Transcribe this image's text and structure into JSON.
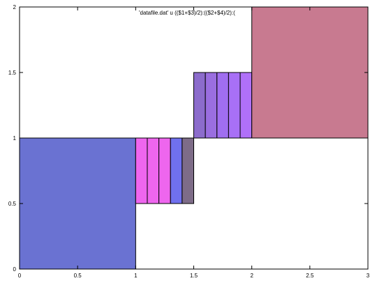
{
  "chart_data": {
    "type": "boxes",
    "key_label": "'datafile.dat' u (($1+$3)/2):(($2+$4)/2):(",
    "xlim": [
      0,
      3
    ],
    "ylim": [
      0,
      2
    ],
    "x_ticks": [
      "0",
      "0.5",
      "1",
      "1.5",
      "2",
      "2.5",
      "3"
    ],
    "y_ticks": [
      "0",
      "0.5",
      "1",
      "1.5",
      "2"
    ],
    "grid": false,
    "rectangles": [
      {
        "x1": 0.0,
        "y1": 0.0,
        "x2": 1.0,
        "y2": 1.0,
        "color": "#6a72d2"
      },
      {
        "x1": 1.0,
        "y1": 0.5,
        "x2": 1.1,
        "y2": 1.0,
        "color": "#ee66ee"
      },
      {
        "x1": 1.1,
        "y1": 0.5,
        "x2": 1.2,
        "y2": 1.0,
        "color": "#ee66ee"
      },
      {
        "x1": 1.2,
        "y1": 0.5,
        "x2": 1.3,
        "y2": 1.0,
        "color": "#ee66ee"
      },
      {
        "x1": 1.3,
        "y1": 0.5,
        "x2": 1.4,
        "y2": 1.0,
        "color": "#7070ee"
      },
      {
        "x1": 1.4,
        "y1": 0.5,
        "x2": 1.5,
        "y2": 1.0,
        "color": "#7e6c88"
      },
      {
        "x1": 1.5,
        "y1": 1.0,
        "x2": 1.6,
        "y2": 1.5,
        "color": "#8c6ccc"
      },
      {
        "x1": 1.6,
        "y1": 1.0,
        "x2": 1.7,
        "y2": 1.5,
        "color": "#9a6ee0"
      },
      {
        "x1": 1.7,
        "y1": 1.0,
        "x2": 1.8,
        "y2": 1.5,
        "color": "#a06ef0"
      },
      {
        "x1": 1.8,
        "y1": 1.0,
        "x2": 1.9,
        "y2": 1.5,
        "color": "#a870f6"
      },
      {
        "x1": 1.9,
        "y1": 1.0,
        "x2": 2.0,
        "y2": 1.5,
        "color": "#b070f8"
      },
      {
        "x1": 2.0,
        "y1": 1.0,
        "x2": 3.0,
        "y2": 2.0,
        "color": "#c87a90"
      }
    ]
  }
}
